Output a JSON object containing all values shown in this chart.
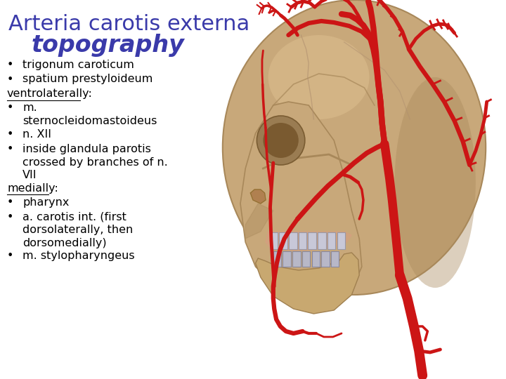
{
  "background_color": "#ffffff",
  "title_line1": "Arteria carotis externa",
  "title_line2": "topography",
  "title_color": "#3a3aaa",
  "title_fontsize1": 22,
  "title_fontsize2": 24,
  "body_fontsize": 11.5,
  "body_color": "#000000",
  "bullet_char": "•",
  "bullet_lines": [
    {
      "type": "bullet",
      "text": "trigonum caroticum",
      "lines": 1
    },
    {
      "type": "bullet",
      "text": "spatium prestyloideum",
      "lines": 1
    },
    {
      "type": "header",
      "text": "ventrolaterally:",
      "lines": 1
    },
    {
      "type": "bullet",
      "text": "m.\nsternocleidomastoideus",
      "lines": 2
    },
    {
      "type": "bullet",
      "text": "n. XII",
      "lines": 1
    },
    {
      "type": "bullet",
      "text": "inside glandula parotis\ncrossed by branches of n.\nVII",
      "lines": 3
    },
    {
      "type": "header",
      "text": "medially:",
      "lines": 1
    },
    {
      "type": "bullet",
      "text": "pharynx",
      "lines": 1
    },
    {
      "type": "bullet",
      "text": "a. carotis int. (first\ndorsolaterally, then\ndorsomedially)",
      "lines": 3
    },
    {
      "type": "bullet",
      "text": "m. stylopharyngeus",
      "lines": 1
    }
  ],
  "skull_color": "#c8a87a",
  "skull_shadow": "#a8885a",
  "skull_light": "#dfc090",
  "artery_color": "#cc1515",
  "artery_dark": "#aa0000",
  "teeth_color": "#c8c8d8",
  "teeth_edge": "#9898a8"
}
